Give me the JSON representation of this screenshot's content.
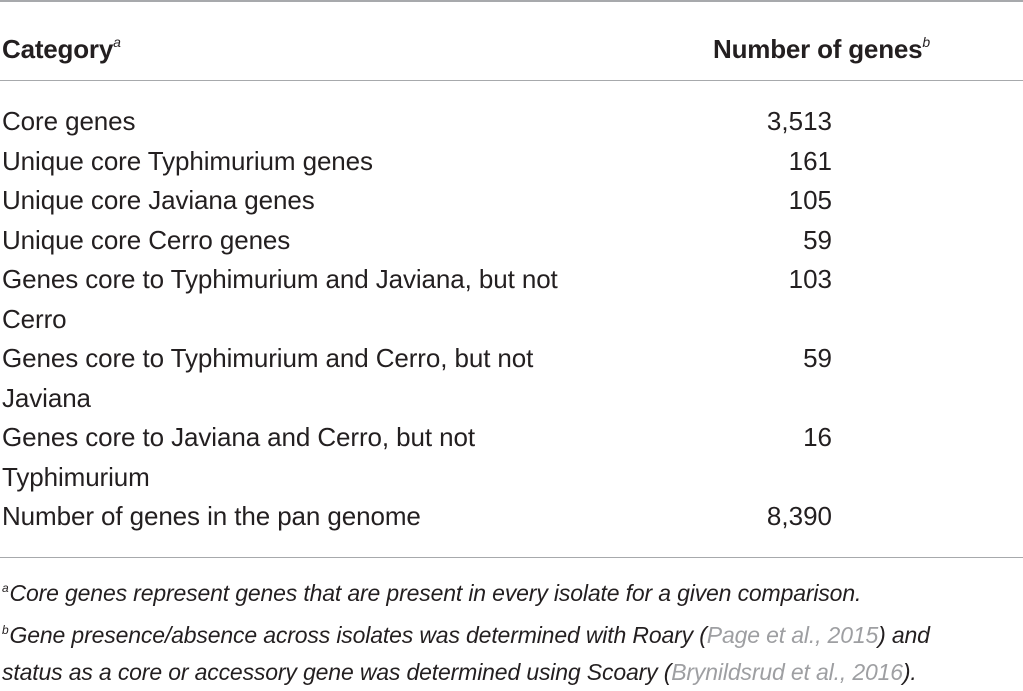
{
  "table": {
    "header": {
      "category": "Category",
      "category_sup": "a",
      "number": "Number of genes",
      "number_sup": "b"
    },
    "rows": [
      {
        "category": "Core genes",
        "number": "3,513"
      },
      {
        "category": "Unique core Typhimurium genes",
        "number": "161"
      },
      {
        "category": "Unique core Javiana genes",
        "number": "105"
      },
      {
        "category": "Unique core Cerro genes",
        "number": "59"
      },
      {
        "category": "Genes core to Typhimurium and Javiana, but not Cerro",
        "number": "103"
      },
      {
        "category": "Genes core to Typhimurium and Cerro, but not Javiana",
        "number": "59"
      },
      {
        "category": "Genes core to Javiana and Cerro, but not Typhimurium",
        "number": "16"
      },
      {
        "category": "Number of genes in the pan genome",
        "number": "8,390"
      }
    ]
  },
  "footnotes": {
    "a": {
      "marker": "a",
      "text": "Core genes represent genes that are present in every isolate for a given comparison."
    },
    "b": {
      "marker": "b",
      "text_1": "Gene presence/absence across isolates was determined with Roary (",
      "ref_1": "Page et al., 2015",
      "text_2": ") and",
      "text_3": "status as a core or accessory gene was determined using Scoary (",
      "ref_2": "Bryn­ildsrud et al., 2016",
      "text_4": ")."
    }
  }
}
